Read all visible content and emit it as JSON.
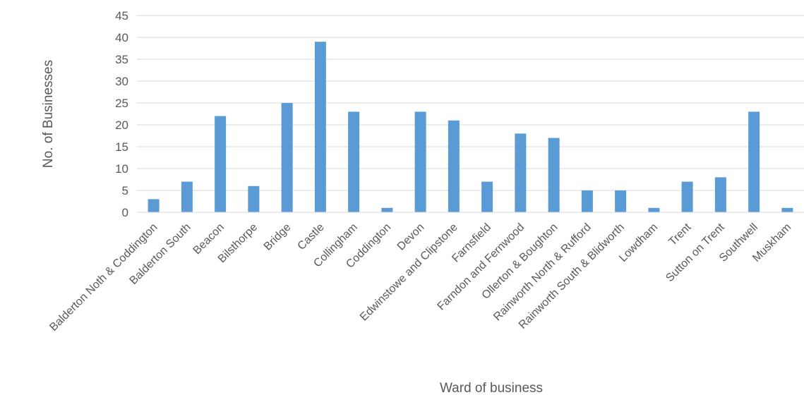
{
  "chart_data": {
    "type": "bar",
    "title": "",
    "xlabel": "Ward of business",
    "ylabel": "No. of Businesses",
    "ylim": [
      0,
      45
    ],
    "yticks": [
      0,
      5,
      10,
      15,
      20,
      25,
      30,
      35,
      40,
      45
    ],
    "grid": true,
    "legend": "none",
    "bar_color": "#5b9bd5",
    "categories": [
      "Balderton Noth & Coddington",
      "Balderton South",
      "Beacon",
      "Bilsthorpe",
      "Bridge",
      "Castle",
      "Collingham",
      "Coddington",
      "Devon",
      "Edwinstowe and Clipstone",
      "Farnsfield",
      "Farndon and Fernwood",
      "Ollerton & Boughton",
      "Rainworth North & Rufford",
      "Rainworth South & Blidworth",
      "Lowdham",
      "Trent",
      "Sutton on Trent",
      "Southwell",
      "Muskham"
    ],
    "values": [
      3,
      7,
      22,
      6,
      25,
      39,
      23,
      1,
      23,
      21,
      7,
      18,
      17,
      5,
      5,
      1,
      7,
      8,
      23,
      1
    ]
  }
}
